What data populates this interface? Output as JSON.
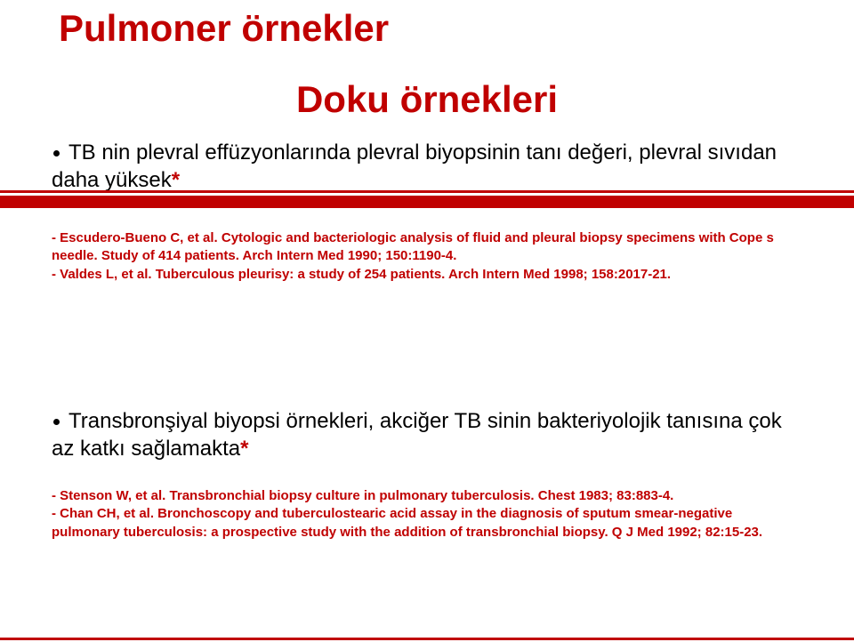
{
  "colors": {
    "accent": "#c00000",
    "text": "#000000",
    "background": "#ffffff"
  },
  "typography": {
    "title_fontsize": 42,
    "body_fontsize": 24,
    "ref_fontsize": 15,
    "font_family": "Comic Sans MS"
  },
  "title": "Pulmoner örnekler",
  "subtitle": "Doku örnekleri",
  "bullets": [
    {
      "text": "TB nin plevral effüzyonlarında plevral biyopsinin tanı değeri, plevral sıvıdan daha yüksek",
      "asterisk": "*",
      "refs": [
        "- Escudero-Bueno C, et al. Cytologic and bacteriologic analysis of fluid and pleural biopsy specimens with Cope s needle. Study of 414 patients. Arch Intern Med 1990; 150:1190-4.",
        "- Valdes L, et al. Tuberculous pleurisy: a study of 254 patients. Arch Intern Med 1998; 158:2017-21."
      ]
    },
    {
      "text": "Transbronşiyal biyopsi örnekleri, akciğer TB sinin bakteriyolojik tanısına çok az katkı sağlamakta",
      "asterisk": "*",
      "refs": [
        "- Stenson W, et al. Transbronchial biopsy culture in pulmonary tuberculosis. Chest 1983; 83:883-4.",
        "- Chan CH, et al. Bronchoscopy and tuberculostearic acid assay in the diagnosis of sputum smear-negative pulmonary tuberculosis: a prospective study with the addition of transbronchial biopsy. Q J Med 1992; 82:15-23."
      ]
    }
  ]
}
